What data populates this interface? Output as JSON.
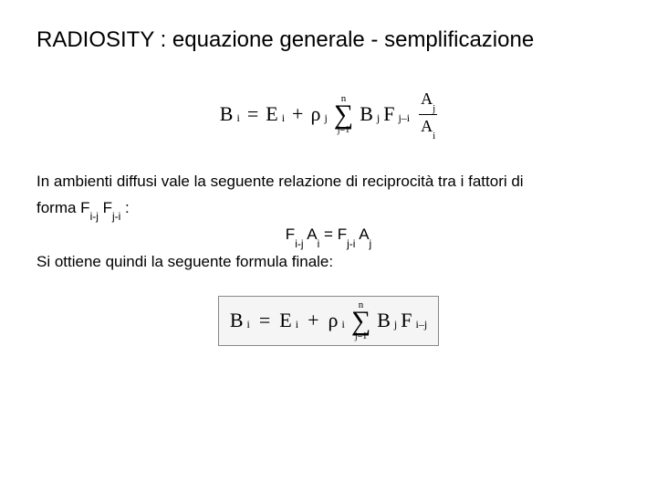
{
  "slide": {
    "title": "RADIOSITY : equazione generale - semplificazione",
    "equation1": {
      "lhs_B": "B",
      "lhs_sub": "i",
      "eq": "=",
      "E": "E",
      "E_sub": "i",
      "plus": "+",
      "rho": "ρ",
      "rho_sub": "j",
      "sigma_top": "n",
      "sigma": "∑",
      "sigma_bot": "j=1",
      "Bj": "B",
      "Bj_sub": "j",
      "Fji": "F",
      "Fji_sub": "j–i",
      "frac_top_A": "A",
      "frac_top_sub": "j",
      "frac_bot_A": "A",
      "frac_bot_sub": "i"
    },
    "para1a": "In ambienti diffusi vale la seguente relazione di reciprocità tra i fattori di",
    "para1b_prefix": "forma F",
    "para1b_sub1": "i-j",
    "para1b_mid": " F",
    "para1b_sub2": "j-i",
    "para1b_suffix": " :",
    "reciprocity": {
      "F1": "F",
      "F1_sub": "i-j",
      "A1": " A",
      "A1_sub": "i",
      "eq": " = ",
      "F2": "F",
      "F2_sub": "j-i",
      "A2": " A",
      "A2_sub": "j"
    },
    "para2": "Si ottiene quindi la seguente formula finale:",
    "equation2": {
      "lhs_B": "B",
      "lhs_sub": "i",
      "eq": "=",
      "E": "E",
      "E_sub": "i",
      "plus": "+",
      "rho": "ρ",
      "rho_sub": "i",
      "sigma_top": "n",
      "sigma": "∑",
      "sigma_bot": "j=1",
      "Bj": "B",
      "Bj_sub": "j",
      "Fij": "F",
      "Fij_sub": "i–j"
    },
    "styles": {
      "background": "#ffffff",
      "title_fontsize": 24,
      "body_fontsize": 17,
      "eq_fontsize": 22,
      "eq_font": "Times New Roman",
      "body_font": "Arial",
      "eq2_border_color": "#888888",
      "eq2_background": "#f5f5f5",
      "text_color": "#000000"
    }
  }
}
